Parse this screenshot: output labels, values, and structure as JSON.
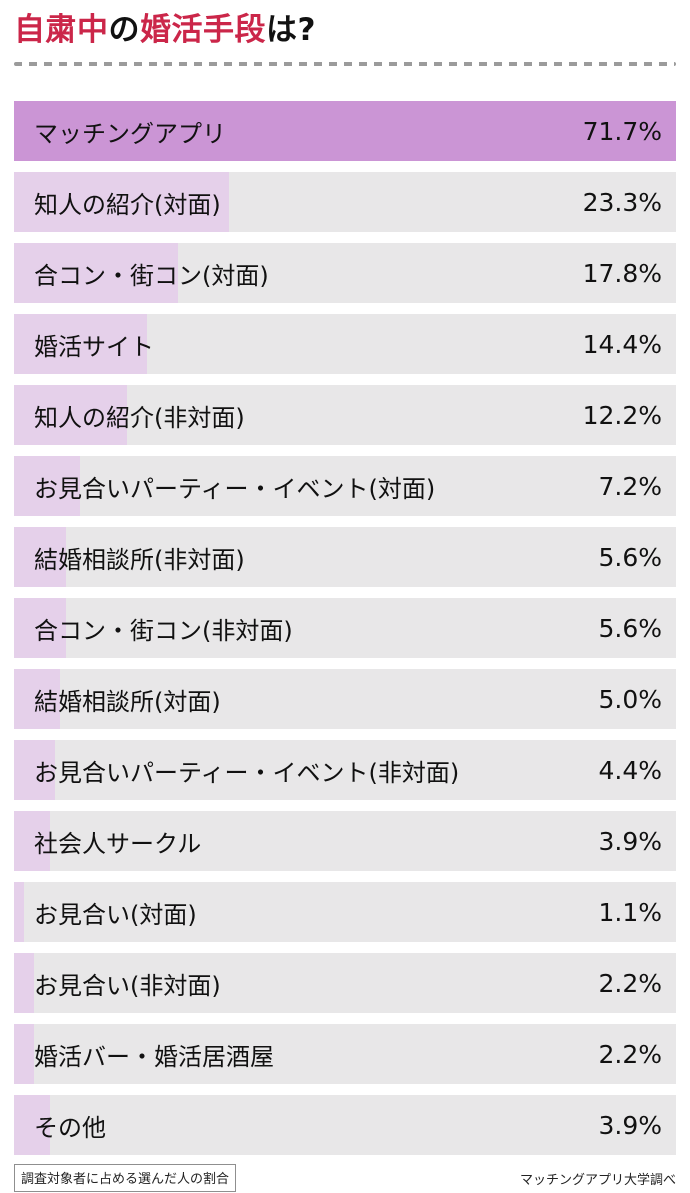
{
  "header": {
    "title_plain": "自粛中の婚活手段は?",
    "title_segments": [
      {
        "text": "自粛中",
        "emphasis": true
      },
      {
        "text": "の",
        "emphasis": false
      },
      {
        "text": "婚活手段",
        "emphasis": true
      },
      {
        "text": "は?",
        "emphasis": false
      }
    ]
  },
  "chart_data": {
    "type": "bar",
    "orientation": "horizontal",
    "unit": "%",
    "title": "自粛中の婚活手段は?",
    "categories": [
      "マッチングアプリ",
      "知人の紹介(対面)",
      "合コン・街コン(対面)",
      "婚活サイト",
      "知人の紹介(非対面)",
      "お見合いパーティー・イベント(対面)",
      "結婚相談所(非対面)",
      "合コン・街コン(非対面)",
      "結婚相談所(対面)",
      "お見合いパーティー・イベント(非対面)",
      "社会人サークル",
      "お見合い(対面)",
      "お見合い(非対面)",
      "婚活バー・婚活居酒屋",
      "その他"
    ],
    "values": [
      71.7,
      23.3,
      17.8,
      14.4,
      12.2,
      7.2,
      5.6,
      5.6,
      5.0,
      4.4,
      3.9,
      1.1,
      2.2,
      2.2,
      3.9
    ],
    "value_labels": [
      "71.7%",
      "23.3%",
      "17.8%",
      "14.4%",
      "12.2%",
      "7.2%",
      "5.6%",
      "5.6%",
      "5.0%",
      "4.4%",
      "3.9%",
      "1.1%",
      "2.2%",
      "2.2%",
      "3.9%"
    ],
    "xlim": [
      0,
      71.7
    ],
    "bar_scale": "bars scaled relative to max value 71.7",
    "highlight_index": 0,
    "legend": "none",
    "grid": false,
    "note": "調査対象者に占める選んだ人の割合",
    "source": "マッチングアプリ大学調べ"
  },
  "colors": {
    "title_accent": "#cb2649",
    "text": "#111111",
    "bar_highlight": "#cb95d5",
    "bar_fill": "#e5d0ea",
    "bar_track": "#e8e7e8",
    "dash": "#9b9b9b"
  }
}
